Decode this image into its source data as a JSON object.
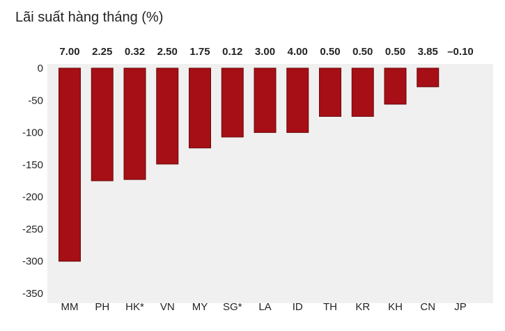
{
  "title": "Lãi suất hàng tháng (%)",
  "colors": {
    "bar": "#a50f15",
    "bar_stroke": "#6b0a0d",
    "plot_bg": "#f0f0f0"
  },
  "chart_data": {
    "type": "bar",
    "title": "Lãi suất hàng tháng (%)",
    "categories": [
      "MM",
      "PH",
      "HK*",
      "VN",
      "MY",
      "SG*",
      "LA",
      "ID",
      "TH",
      "KR",
      "KH",
      "CN",
      "JP"
    ],
    "values": [
      -300,
      -175,
      -173,
      -149,
      -124,
      -107,
      -100,
      -100,
      -75,
      -75,
      -56,
      -29,
      0
    ],
    "bar_labels": [
      "7.00",
      "2.25",
      "0.32",
      "2.50",
      "1.75",
      "0.12",
      "3.00",
      "4.00",
      "0.50",
      "0.50",
      "0.50",
      "3.85",
      "–0.10"
    ],
    "yticks": [
      0,
      -50,
      -100,
      -150,
      -200,
      -250,
      -300,
      -350
    ],
    "ylim": [
      -350,
      0
    ],
    "xlabel": "",
    "ylabel": "",
    "grid": false,
    "legend": "none"
  }
}
